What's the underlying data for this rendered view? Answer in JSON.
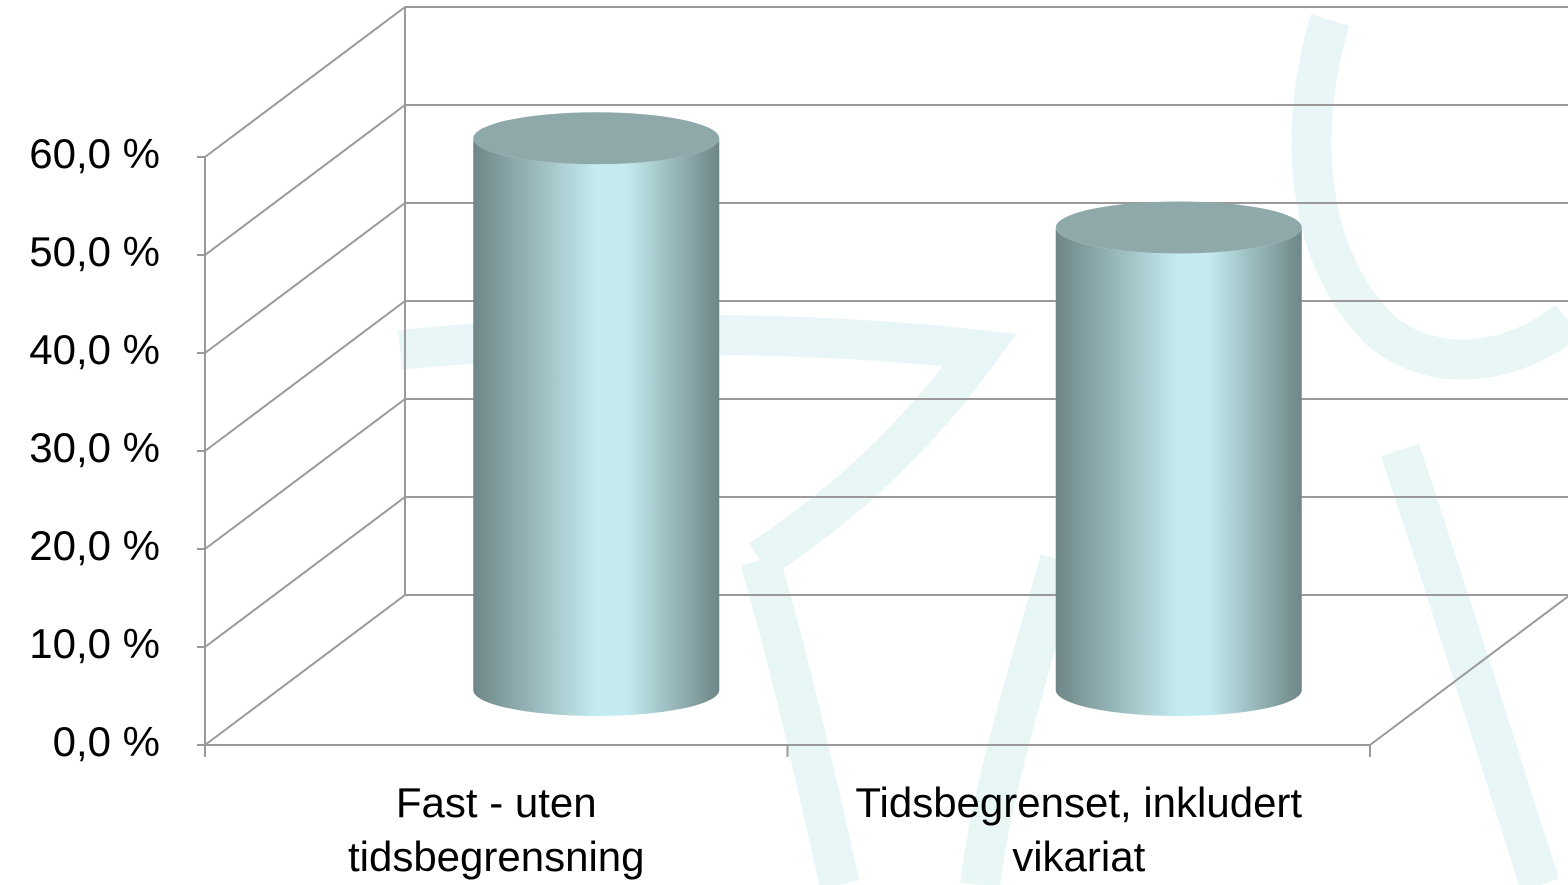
{
  "chart_data": {
    "type": "bar",
    "categories": [
      "Fast - uten tidsbegrensning",
      "Tidsbegrenset, inkludert vikariat"
    ],
    "values": [
      56.3,
      47.2
    ],
    "color": "#c4ecf0",
    "ylim": [
      0,
      60
    ],
    "yticks": [
      {
        "value": 0,
        "label": "0,0 %"
      },
      {
        "value": 10,
        "label": "10,0 %"
      },
      {
        "value": 20,
        "label": "20,0 %"
      },
      {
        "value": 30,
        "label": "30,0 %"
      },
      {
        "value": 40,
        "label": "40,0 %"
      },
      {
        "value": 50,
        "label": "50,0 %"
      },
      {
        "value": 60,
        "label": "60,0 %"
      }
    ],
    "grid": true
  }
}
